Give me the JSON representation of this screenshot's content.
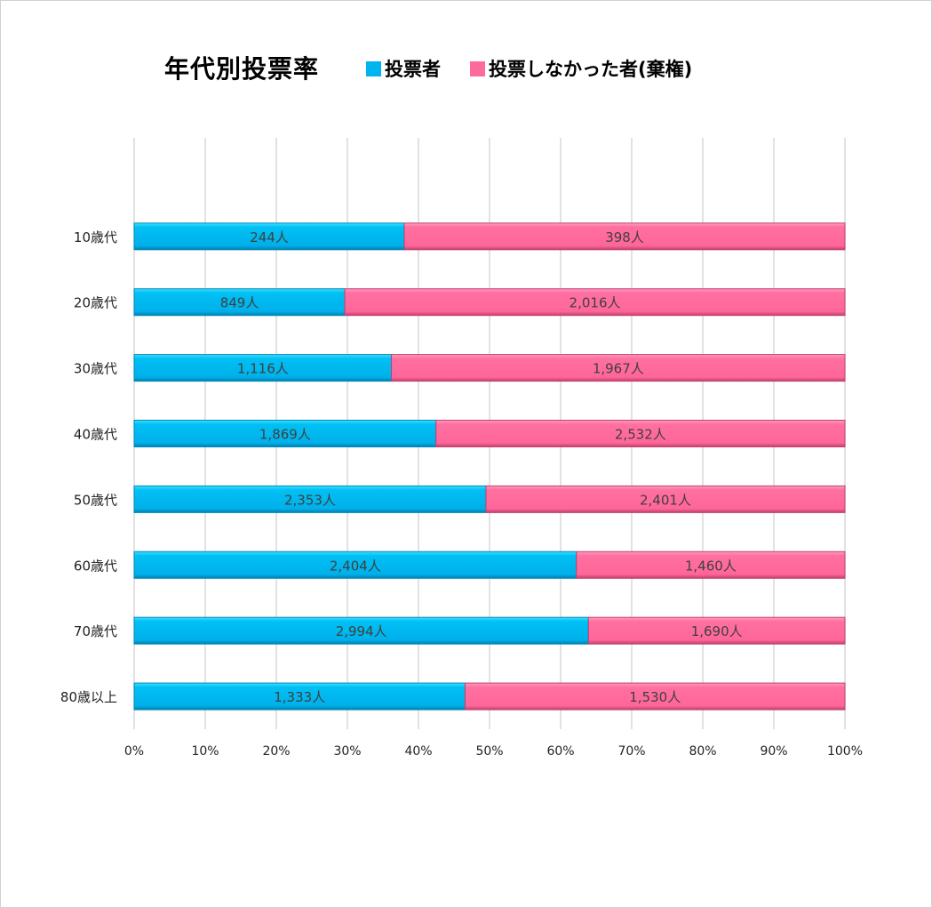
{
  "chart_data": {
    "type": "bar",
    "orientation": "horizontal",
    "stacked": "percent",
    "title": "年代別投票率",
    "categories": [
      "10歳代",
      "20歳代",
      "30歳代",
      "40歳代",
      "50歳代",
      "60歳代",
      "70歳代",
      "80歳以上"
    ],
    "series": [
      {
        "name": "投票者",
        "color": "#00B4F0",
        "values": [
          244,
          849,
          1116,
          1869,
          2353,
          2404,
          2994,
          1333
        ],
        "labels": [
          "244人",
          "849人",
          "1,116人",
          "1,869人",
          "2,353人",
          "2,404人",
          "2,994人",
          "1,333人"
        ]
      },
      {
        "name": "投票しなかった者(棄権)",
        "color": "#FF6A9C",
        "values": [
          398,
          2016,
          1967,
          2532,
          2401,
          1460,
          1690,
          1530
        ],
        "labels": [
          "398人",
          "2,016人",
          "1,967人",
          "2,532人",
          "2,401人",
          "1,460人",
          "1,690人",
          "1,530人"
        ]
      }
    ],
    "xlim": [
      0,
      100
    ],
    "xticks": [
      "0%",
      "10%",
      "20%",
      "30%",
      "40%",
      "50%",
      "60%",
      "70%",
      "80%",
      "90%",
      "100%"
    ],
    "grid": true,
    "legend_position": "top"
  }
}
